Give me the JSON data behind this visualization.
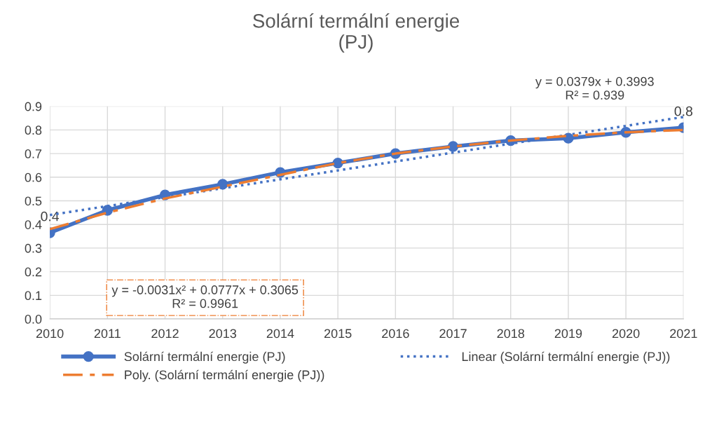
{
  "chart_data": {
    "type": "line",
    "title": "Solární termální energie\n(PJ)",
    "categories": [
      "2010",
      "2011",
      "2012",
      "2013",
      "2014",
      "2015",
      "2016",
      "2017",
      "2018",
      "2019",
      "2020",
      "2021"
    ],
    "series": [
      {
        "name": "Solární termální energie (PJ)",
        "color": "#4472c4",
        "marker": "circle",
        "line_style": "solid",
        "values": [
          0.365,
          0.46,
          0.525,
          0.57,
          0.62,
          0.66,
          0.7,
          0.73,
          0.755,
          0.765,
          0.79,
          0.81
        ],
        "value_labels": [
          "0.4",
          null,
          null,
          null,
          null,
          null,
          null,
          null,
          null,
          null,
          null,
          "0.8"
        ]
      },
      {
        "name": "Linear (Solární termální energie (PJ))",
        "color": "#4472c4",
        "marker": "none",
        "line_style": "dotted",
        "values": [
          0.44,
          null,
          null,
          null,
          null,
          null,
          null,
          null,
          null,
          null,
          null,
          0.855
        ]
      },
      {
        "name": "Poly. (Solární termální energie (PJ))",
        "color": "#ed7d31",
        "marker": "none",
        "line_style": "dashed",
        "values": [
          0.38,
          0.45,
          0.51,
          0.56,
          0.61,
          0.66,
          0.7,
          0.73,
          0.755,
          0.775,
          0.79,
          0.8
        ]
      }
    ],
    "annotations": [
      "y = 0.0379x + 0.3993\nR² = 0.939",
      "y = -0.0031x² + 0.0777x + 0.3065\nR² = 0.9961"
    ],
    "ylim": [
      0,
      0.9
    ],
    "yticks": [
      {
        "value": 0,
        "label": "0.0"
      },
      0.1,
      0.2,
      0.3,
      0.4,
      0.5,
      0.6,
      0.7,
      0.8,
      0.9
    ],
    "grid": true,
    "legend": "bottom"
  }
}
